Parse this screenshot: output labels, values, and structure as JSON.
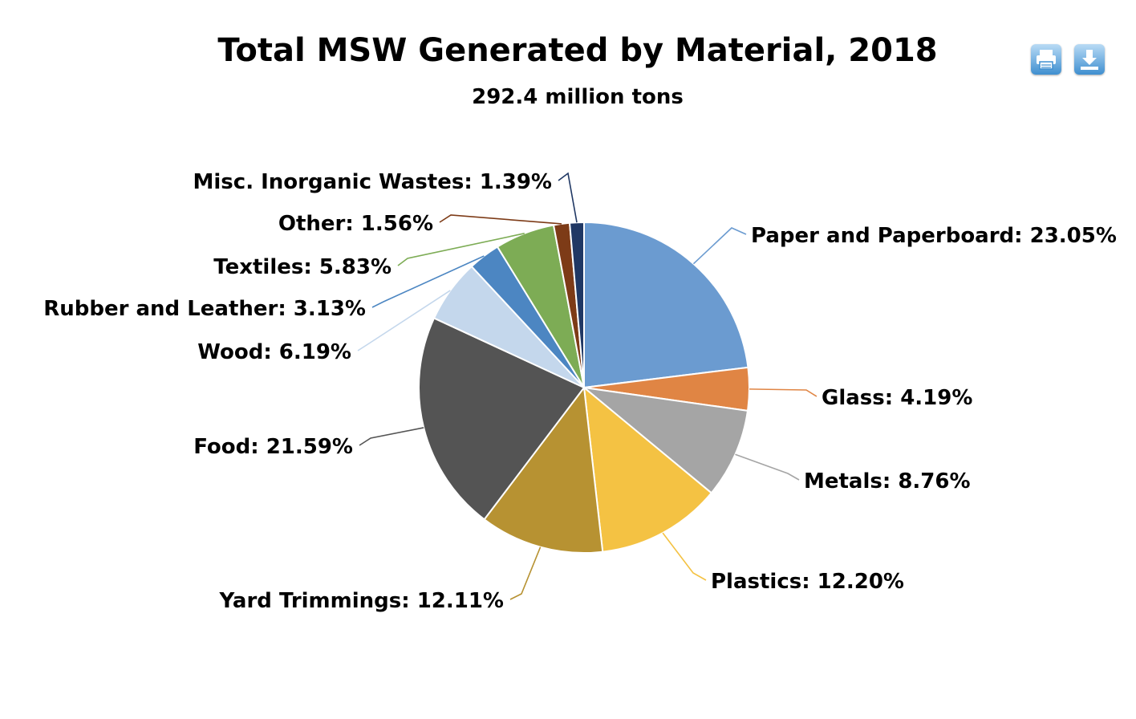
{
  "title": "Total MSW Generated by Material, 2018",
  "subtitle": "292.4 million tons",
  "toolbar": {
    "print_icon": "print-icon",
    "download_icon": "download-icon"
  },
  "chart_data": {
    "type": "pie",
    "title": "Total MSW Generated by Material, 2018",
    "subtitle": "292.4 million tons",
    "slices": [
      {
        "label": "Paper and Paperboard",
        "value": 23.05,
        "display": "Paper and Paperboard: 23.05%",
        "color": "#6b9bd0"
      },
      {
        "label": "Glass",
        "value": 4.19,
        "display": "Glass: 4.19%",
        "color": "#e08544"
      },
      {
        "label": "Metals",
        "value": 8.76,
        "display": "Metals: 8.76%",
        "color": "#a5a5a5"
      },
      {
        "label": "Plastics",
        "value": 12.2,
        "display": "Plastics: 12.20%",
        "color": "#f4c243"
      },
      {
        "label": "Yard Trimmings",
        "value": 12.11,
        "display": "Yard Trimmings: 12.11%",
        "color": "#b79232"
      },
      {
        "label": "Food",
        "value": 21.59,
        "display": "Food: 21.59%",
        "color": "#545454"
      },
      {
        "label": "Wood",
        "value": 6.19,
        "display": "Wood: 6.19%",
        "color": "#c4d7ec"
      },
      {
        "label": "Rubber and Leather",
        "value": 3.13,
        "display": "Rubber and Leather: 3.13%",
        "color": "#4c86c2"
      },
      {
        "label": "Textiles",
        "value": 5.83,
        "display": "Textiles: 5.83%",
        "color": "#7dac55"
      },
      {
        "label": "Other",
        "value": 1.56,
        "display": "Other: 1.56%",
        "color": "#7d3b17"
      },
      {
        "label": "Misc. Inorganic Wastes",
        "value": 1.39,
        "display": "Misc. Inorganic Wastes: 1.39%",
        "color": "#203864"
      }
    ]
  }
}
